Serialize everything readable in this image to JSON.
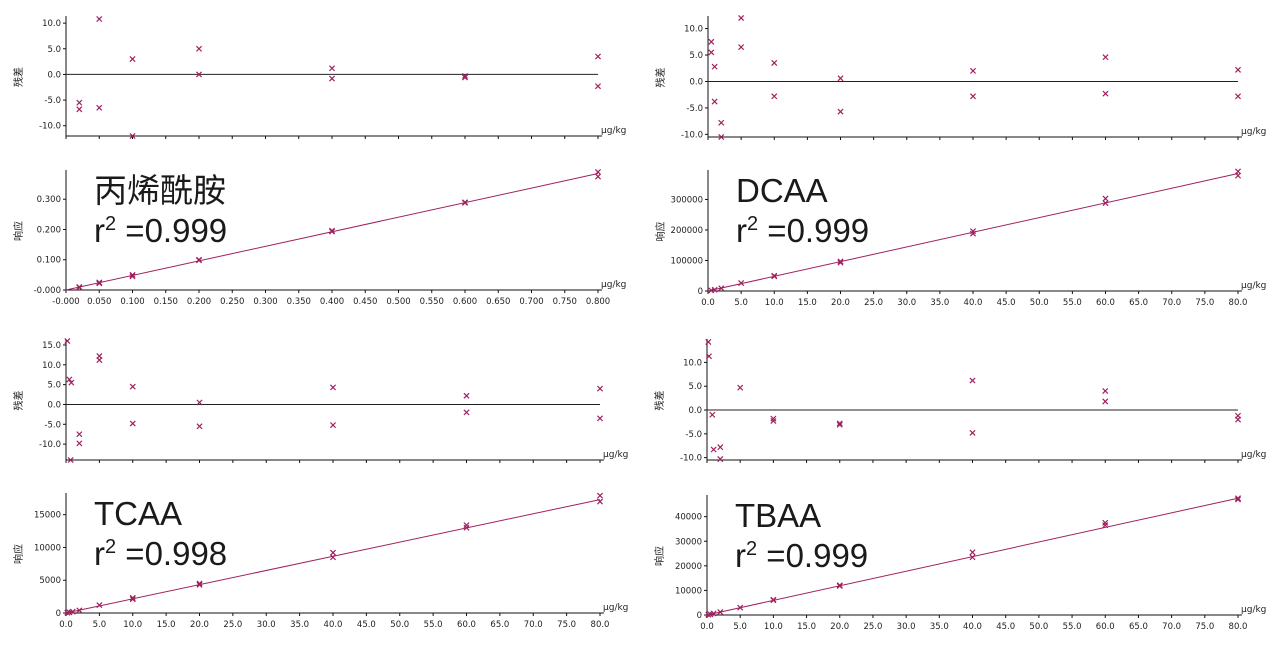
{
  "colors": {
    "marker": "#a0205f",
    "line": "#a0205f",
    "axis": "#111111",
    "zero_line": "#222222"
  },
  "chart_data": [
    {
      "type": "scatter",
      "panel": "top-left-residual",
      "ylabel": "残差",
      "xunit": "µg/kg",
      "xlim": [
        0,
        0.8
      ],
      "ylim": [
        -12,
        11
      ],
      "yticks": [
        "10.0",
        "5.0",
        "0.0",
        "-5.0",
        "-10.0"
      ],
      "points": [
        {
          "x": 0.02,
          "y": -5.5
        },
        {
          "x": 0.02,
          "y": -6.8
        },
        {
          "x": 0.05,
          "y": 10.8
        },
        {
          "x": 0.05,
          "y": -6.5
        },
        {
          "x": 0.1,
          "y": 3.0
        },
        {
          "x": 0.1,
          "y": -12.0
        },
        {
          "x": 0.2,
          "y": 5.0
        },
        {
          "x": 0.2,
          "y": 0.0
        },
        {
          "x": 0.4,
          "y": 1.2
        },
        {
          "x": 0.4,
          "y": -0.8
        },
        {
          "x": 0.6,
          "y": -0.3
        },
        {
          "x": 0.6,
          "y": -0.6
        },
        {
          "x": 0.8,
          "y": 3.5
        },
        {
          "x": 0.8,
          "y": -2.3
        }
      ]
    },
    {
      "type": "scatter",
      "panel": "top-left-calibration",
      "title": "丙烯酰胺",
      "r2": "r",
      "r2_sup": "2",
      "r2_value": " =0.999",
      "ylabel": "响应",
      "xunit": "µg/kg",
      "xlim": [
        -0.0,
        0.8
      ],
      "ylim": [
        0,
        0.39
      ],
      "xticks": [
        "-0.000",
        "0.050",
        "0.100",
        "0.150",
        "0.200",
        "0.250",
        "0.300",
        "0.350",
        "0.400",
        "0.450",
        "0.500",
        "0.550",
        "0.600",
        "0.650",
        "0.700",
        "0.750",
        "0.800"
      ],
      "yticks": [
        "0.300",
        "0.200",
        "0.100",
        "-0.000"
      ],
      "fit": [
        [
          0,
          0
        ],
        [
          0.8,
          0.385
        ]
      ],
      "points": [
        {
          "x": 0.02,
          "y": 0.008
        },
        {
          "x": 0.02,
          "y": 0.01
        },
        {
          "x": 0.05,
          "y": 0.022
        },
        {
          "x": 0.05,
          "y": 0.025
        },
        {
          "x": 0.1,
          "y": 0.045
        },
        {
          "x": 0.1,
          "y": 0.05
        },
        {
          "x": 0.2,
          "y": 0.098
        },
        {
          "x": 0.2,
          "y": 0.1
        },
        {
          "x": 0.4,
          "y": 0.193
        },
        {
          "x": 0.4,
          "y": 0.196
        },
        {
          "x": 0.6,
          "y": 0.288
        },
        {
          "x": 0.6,
          "y": 0.29
        },
        {
          "x": 0.8,
          "y": 0.39
        },
        {
          "x": 0.8,
          "y": 0.375
        }
      ]
    },
    {
      "type": "scatter",
      "panel": "top-right-residual",
      "ylabel": "残差",
      "xunit": "µg/kg",
      "xlim": [
        0,
        80
      ],
      "ylim": [
        -10.5,
        12
      ],
      "yticks": [
        "10.0",
        "5.0",
        "0.0",
        "-5.0",
        "-10.0"
      ],
      "points": [
        {
          "x": 0.5,
          "y": 7.5
        },
        {
          "x": 0.5,
          "y": 5.5
        },
        {
          "x": 1,
          "y": 2.8
        },
        {
          "x": 1,
          "y": -3.8
        },
        {
          "x": 2,
          "y": -7.8
        },
        {
          "x": 2,
          "y": -10.5
        },
        {
          "x": 5,
          "y": 12.0
        },
        {
          "x": 5,
          "y": 6.5
        },
        {
          "x": 10,
          "y": 3.5
        },
        {
          "x": 10,
          "y": -2.8
        },
        {
          "x": 20,
          "y": 0.6
        },
        {
          "x": 20,
          "y": -5.7
        },
        {
          "x": 40,
          "y": 2.0
        },
        {
          "x": 40,
          "y": -2.8
        },
        {
          "x": 60,
          "y": 4.6
        },
        {
          "x": 60,
          "y": -2.3
        },
        {
          "x": 80,
          "y": 2.2
        },
        {
          "x": 80,
          "y": -2.8
        }
      ]
    },
    {
      "type": "scatter",
      "panel": "top-right-calibration",
      "title": "DCAA",
      "r2": "r",
      "r2_sup": "2",
      "r2_value": " =0.999",
      "ylabel": "响应",
      "xunit": "µg/kg",
      "xlim": [
        0,
        80
      ],
      "ylim": [
        0,
        390000
      ],
      "xticks": [
        "0.0",
        "5.0",
        "10.0",
        "15.0",
        "20.0",
        "25.0",
        "30.0",
        "35.0",
        "40.0",
        "45.0",
        "50.0",
        "55.0",
        "60.0",
        "65.0",
        "70.0",
        "75.0",
        "80.0"
      ],
      "yticks": [
        "300000",
        "200000",
        "100000",
        "0"
      ],
      "fit": [
        [
          0,
          0
        ],
        [
          80,
          385000
        ]
      ],
      "points": [
        {
          "x": 0.5,
          "y": 2000
        },
        {
          "x": 1,
          "y": 4000
        },
        {
          "x": 2,
          "y": 9000
        },
        {
          "x": 5,
          "y": 26000
        },
        {
          "x": 10,
          "y": 48000
        },
        {
          "x": 10,
          "y": 50000
        },
        {
          "x": 20,
          "y": 93000
        },
        {
          "x": 20,
          "y": 97000
        },
        {
          "x": 40,
          "y": 188000
        },
        {
          "x": 40,
          "y": 196000
        },
        {
          "x": 60,
          "y": 288000
        },
        {
          "x": 60,
          "y": 303000
        },
        {
          "x": 80,
          "y": 378000
        },
        {
          "x": 80,
          "y": 392000
        }
      ]
    },
    {
      "type": "scatter",
      "panel": "bottom-left-residual",
      "ylabel": "残差",
      "xunit": "µg/kg",
      "xlim": [
        0,
        80
      ],
      "ylim": [
        -14,
        16
      ],
      "yticks": [
        "15.0",
        "10.0",
        "5.0",
        "0.0",
        "-5.0",
        "-10.0"
      ],
      "points": [
        {
          "x": 0.2,
          "y": 16.0
        },
        {
          "x": 0.5,
          "y": 6.3
        },
        {
          "x": 0.8,
          "y": 5.5
        },
        {
          "x": 0.7,
          "y": -14.0
        },
        {
          "x": 2,
          "y": -7.5
        },
        {
          "x": 2,
          "y": -9.8
        },
        {
          "x": 5,
          "y": 12.2
        },
        {
          "x": 5,
          "y": 11.2
        },
        {
          "x": 10,
          "y": 4.5
        },
        {
          "x": 10,
          "y": -4.8
        },
        {
          "x": 20,
          "y": 0.5
        },
        {
          "x": 20,
          "y": -5.5
        },
        {
          "x": 40,
          "y": 4.3
        },
        {
          "x": 40,
          "y": -5.2
        },
        {
          "x": 60,
          "y": 2.2
        },
        {
          "x": 60,
          "y": -2.0
        },
        {
          "x": 80,
          "y": 4.0
        },
        {
          "x": 80,
          "y": -3.5
        }
      ]
    },
    {
      "type": "scatter",
      "panel": "bottom-left-calibration",
      "title": "TCAA",
      "r2": "r",
      "r2_sup": "2",
      "r2_value": " =0.998",
      "ylabel": "响应",
      "xunit": "µg/kg",
      "xlim": [
        0,
        80
      ],
      "ylim": [
        0,
        18000
      ],
      "xticks": [
        "0.0",
        "5.0",
        "10.0",
        "15.0",
        "20.0",
        "25.0",
        "30.0",
        "35.0",
        "40.0",
        "45.0",
        "50.0",
        "55.0",
        "60.0",
        "65.0",
        "70.0",
        "75.0",
        "80.0"
      ],
      "yticks": [
        "15000",
        "10000",
        "5000",
        "0"
      ],
      "fit": [
        [
          0,
          0
        ],
        [
          80,
          17300
        ]
      ],
      "points": [
        {
          "x": 0.2,
          "y": 50
        },
        {
          "x": 0.5,
          "y": 100
        },
        {
          "x": 1,
          "y": 200
        },
        {
          "x": 2,
          "y": 400
        },
        {
          "x": 5,
          "y": 1200
        },
        {
          "x": 10,
          "y": 2100
        },
        {
          "x": 10,
          "y": 2300
        },
        {
          "x": 20,
          "y": 4300
        },
        {
          "x": 20,
          "y": 4500
        },
        {
          "x": 40,
          "y": 8500
        },
        {
          "x": 40,
          "y": 9200
        },
        {
          "x": 60,
          "y": 13000
        },
        {
          "x": 60,
          "y": 13400
        },
        {
          "x": 80,
          "y": 17000
        },
        {
          "x": 80,
          "y": 17900
        }
      ]
    },
    {
      "type": "scatter",
      "panel": "bottom-right-residual",
      "ylabel": "残差",
      "xunit": "µg/kg",
      "xlim": [
        0,
        80
      ],
      "ylim": [
        -10.5,
        14.5
      ],
      "yticks": [
        "10.0",
        "5.0",
        "0.0",
        "-5.0",
        "-10.0"
      ],
      "points": [
        {
          "x": 0.2,
          "y": 14.3
        },
        {
          "x": 0.3,
          "y": 11.3
        },
        {
          "x": 0.8,
          "y": -1.0
        },
        {
          "x": 1,
          "y": -8.3
        },
        {
          "x": 2,
          "y": -7.8
        },
        {
          "x": 2,
          "y": -10.3
        },
        {
          "x": 5,
          "y": 4.7
        },
        {
          "x": 10,
          "y": -1.8
        },
        {
          "x": 10,
          "y": -2.3
        },
        {
          "x": 20,
          "y": -2.8
        },
        {
          "x": 20,
          "y": -3.1
        },
        {
          "x": 40,
          "y": 6.2
        },
        {
          "x": 40,
          "y": -4.8
        },
        {
          "x": 60,
          "y": 4.0
        },
        {
          "x": 60,
          "y": 1.8
        },
        {
          "x": 80,
          "y": -1.2
        },
        {
          "x": 80,
          "y": -2.0
        }
      ]
    },
    {
      "type": "scatter",
      "panel": "bottom-right-calibration",
      "title": "TBAA",
      "r2": "r",
      "r2_sup": "2",
      "r2_value": " =0.999",
      "ylabel": "响应",
      "xunit": "µg/kg",
      "xlim": [
        0,
        80
      ],
      "ylim": [
        0,
        48000
      ],
      "xticks": [
        "0.0",
        "5.0",
        "10.0",
        "15.0",
        "20.0",
        "25.0",
        "30.0",
        "35.0",
        "40.0",
        "45.0",
        "50.0",
        "55.0",
        "60.0",
        "65.0",
        "70.0",
        "75.0",
        "80.0"
      ],
      "yticks": [
        "40000",
        "30000",
        "20000",
        "10000",
        "0"
      ],
      "fit": [
        [
          0,
          0
        ],
        [
          80,
          47500
        ]
      ],
      "points": [
        {
          "x": 0.2,
          "y": 100
        },
        {
          "x": 0.5,
          "y": 300
        },
        {
          "x": 1,
          "y": 600
        },
        {
          "x": 2,
          "y": 1200
        },
        {
          "x": 5,
          "y": 3000
        },
        {
          "x": 10,
          "y": 6000
        },
        {
          "x": 10,
          "y": 6200
        },
        {
          "x": 20,
          "y": 11800
        },
        {
          "x": 20,
          "y": 12100
        },
        {
          "x": 40,
          "y": 23500
        },
        {
          "x": 40,
          "y": 25500
        },
        {
          "x": 60,
          "y": 36500
        },
        {
          "x": 60,
          "y": 37500
        },
        {
          "x": 80,
          "y": 47000
        },
        {
          "x": 80,
          "y": 47500
        }
      ]
    }
  ]
}
